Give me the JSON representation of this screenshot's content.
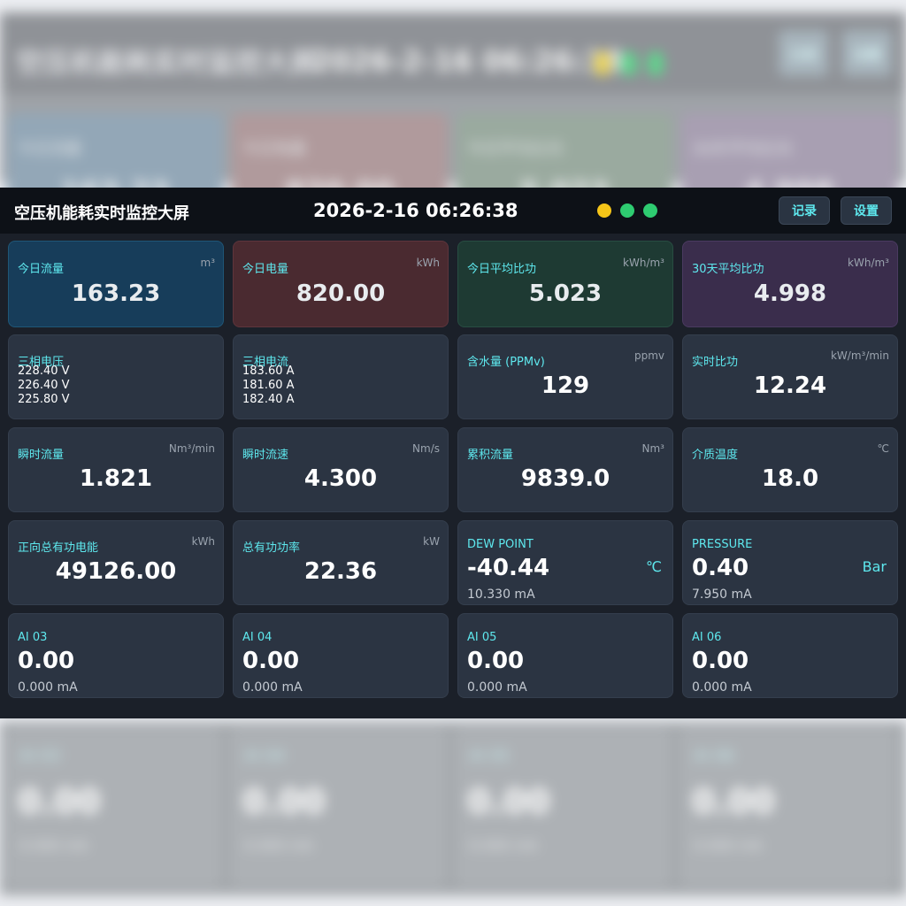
{
  "header": {
    "title": "空压机能耗实时监控大屏",
    "datetime": "2026-2-16 06:26:38",
    "status_dots": [
      "#f5c518",
      "#2ecc71",
      "#2ecc71"
    ],
    "buttons": {
      "record": "记录",
      "settings": "设置"
    }
  },
  "summary": [
    {
      "label": "今日流量",
      "unit": "m³",
      "value": "163.23",
      "color": "#173d5a",
      "border": "#1f5677"
    },
    {
      "label": "今日电量",
      "unit": "kWh",
      "value": "820.00",
      "color": "#4a2a30",
      "border": "#5e353c"
    },
    {
      "label": "今日平均比功",
      "unit": "kWh/m³",
      "value": "5.023",
      "color": "#1e3a33",
      "border": "#284d42"
    },
    {
      "label": "30天平均比功",
      "unit": "kWh/m³",
      "value": "4.998",
      "color": "#3a2d4c",
      "border": "#4a3a60"
    }
  ],
  "row2": {
    "voltage": {
      "label": "三相电压",
      "lines": [
        "228.40 V",
        "226.40 V",
        "225.80 V"
      ]
    },
    "current": {
      "label": "三相电流",
      "lines": [
        "183.60 A",
        "181.60 A",
        "182.40 A"
      ]
    },
    "moisture": {
      "label": "含水量 (PPMv)",
      "unit": "ppmv",
      "value": "129"
    },
    "specific_power": {
      "label": "实时比功",
      "unit": "kW/m³/min",
      "value": "12.24"
    }
  },
  "row3": [
    {
      "label": "瞬时流量",
      "unit": "Nm³/min",
      "value": "1.821"
    },
    {
      "label": "瞬时流速",
      "unit": "Nm/s",
      "value": "4.300"
    },
    {
      "label": "累积流量",
      "unit": "Nm³",
      "value": "9839.0"
    },
    {
      "label": "介质温度",
      "unit": "℃",
      "value": "18.0"
    }
  ],
  "row4": {
    "energy": {
      "label": "正向总有功电能",
      "unit": "kWh",
      "value": "49126.00"
    },
    "power": {
      "label": "总有功功率",
      "unit": "kW",
      "value": "22.36"
    },
    "dew_point": {
      "label": "DEW POINT",
      "value": "-40.44",
      "unit": "℃",
      "sub": "10.330 mA"
    },
    "pressure": {
      "label": "PRESSURE",
      "value": "0.40",
      "unit": "Bar",
      "sub": "7.950 mA"
    }
  },
  "row5": [
    {
      "label": "AI 03",
      "value": "0.00",
      "sub": "0.000 mA"
    },
    {
      "label": "AI 04",
      "value": "0.00",
      "sub": "0.000 mA"
    },
    {
      "label": "AI 05",
      "value": "0.00",
      "sub": "0.000 mA"
    },
    {
      "label": "AI 06",
      "value": "0.00",
      "sub": "0.000 mA"
    }
  ]
}
